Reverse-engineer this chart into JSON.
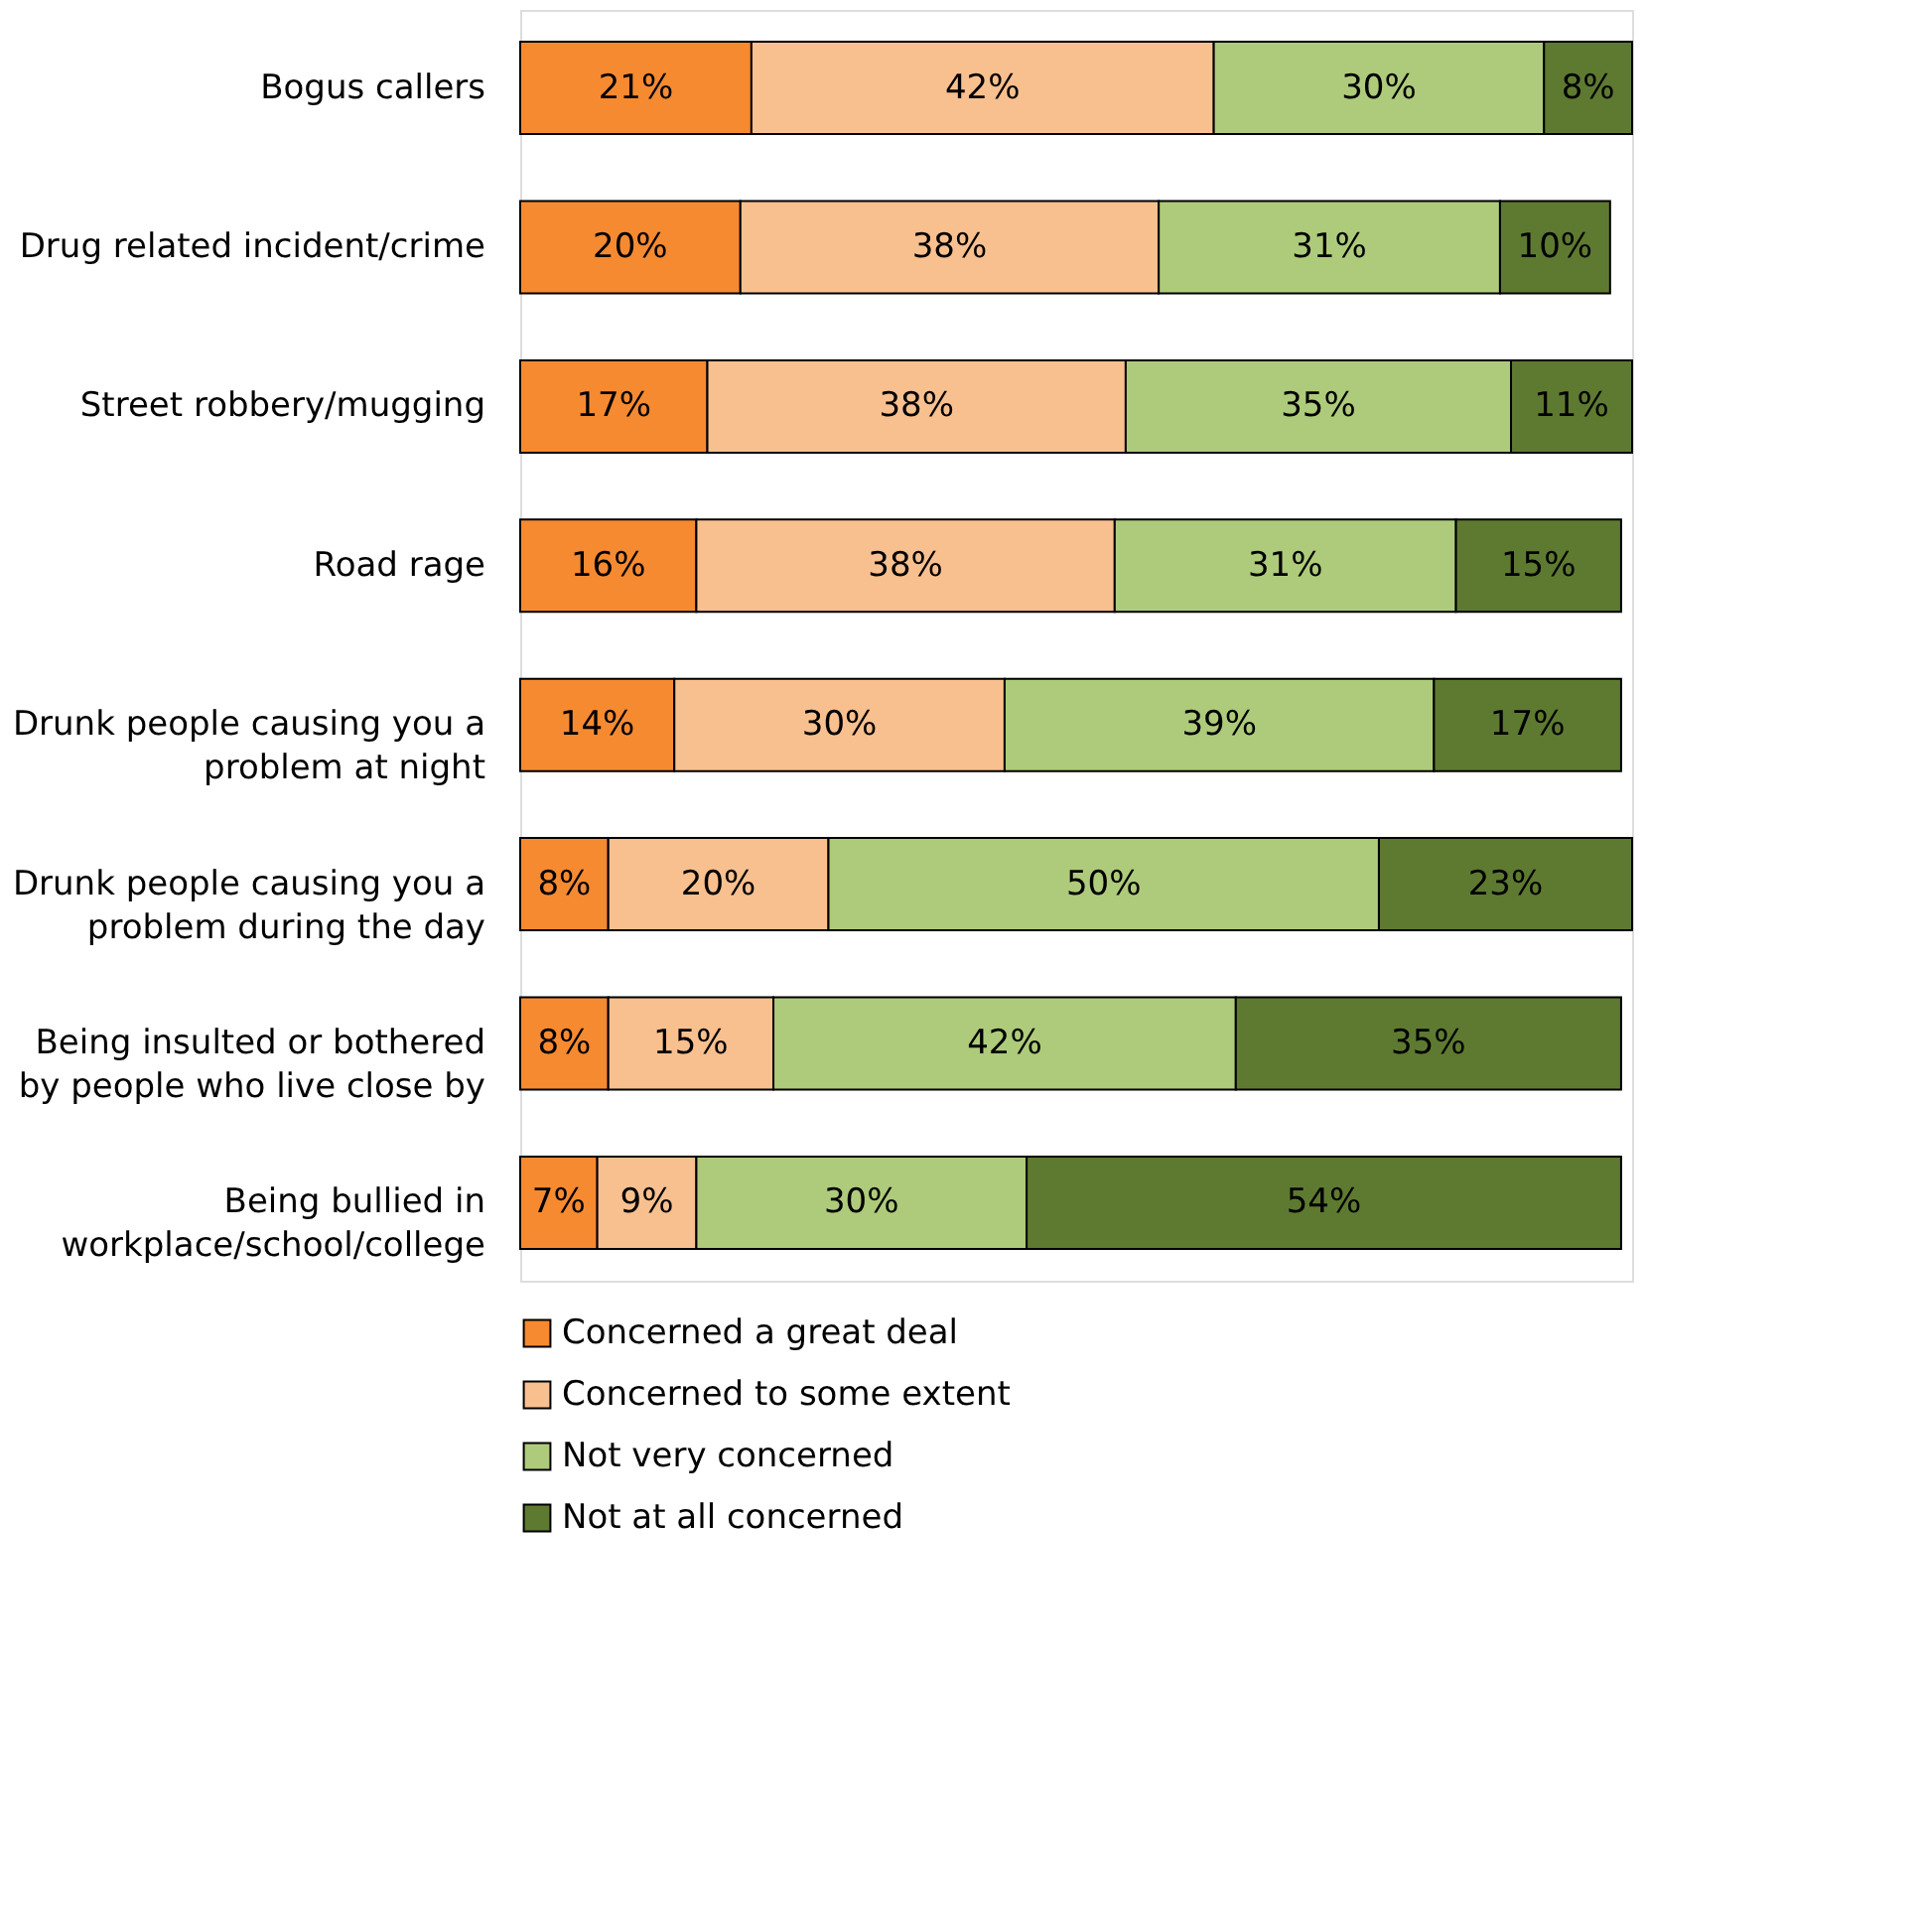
{
  "chart_data": {
    "type": "bar",
    "orientation": "horizontal",
    "stacked": true,
    "legend": "bottom",
    "categories": [
      "Bogus callers",
      "Drug related incident/crime",
      "Street robbery/mugging",
      "Road rage",
      "Drunk people causing you a problem at night",
      "Drunk people causing you a problem during the day",
      "Being insulted or bothered by people who live close by",
      "Being bullied in workplace/school/college"
    ],
    "series": [
      {
        "name": "Concerned a great deal",
        "color": "#f68a31",
        "values": [
          21,
          20,
          17,
          16,
          14,
          8,
          8,
          7
        ],
        "value_labels": [
          "21%",
          "20%",
          "17%",
          "16%",
          "14%",
          "8%",
          "8%",
          "7%"
        ]
      },
      {
        "name": "Concerned to some extent",
        "color": "#f9c08f",
        "values": [
          42,
          38,
          38,
          38,
          30,
          20,
          15,
          9
        ],
        "value_labels": [
          "42%",
          "38%",
          "38%",
          "38%",
          "30%",
          "20%",
          "15%",
          "9%"
        ]
      },
      {
        "name": "Not very concerned",
        "color": "#aecb7b",
        "values": [
          30,
          31,
          35,
          31,
          39,
          50,
          42,
          30
        ],
        "value_labels": [
          "30%",
          "31%",
          "35%",
          "31%",
          "39%",
          "50%",
          "42%",
          "30%"
        ]
      },
      {
        "name": "Not at all concerned",
        "color": "#5e7a31",
        "values": [
          8,
          10,
          11,
          15,
          17,
          23,
          35,
          54
        ],
        "value_labels": [
          "8%",
          "10%",
          "11%",
          "15%",
          "17%",
          "23%",
          "35%",
          "54%"
        ]
      }
    ]
  }
}
